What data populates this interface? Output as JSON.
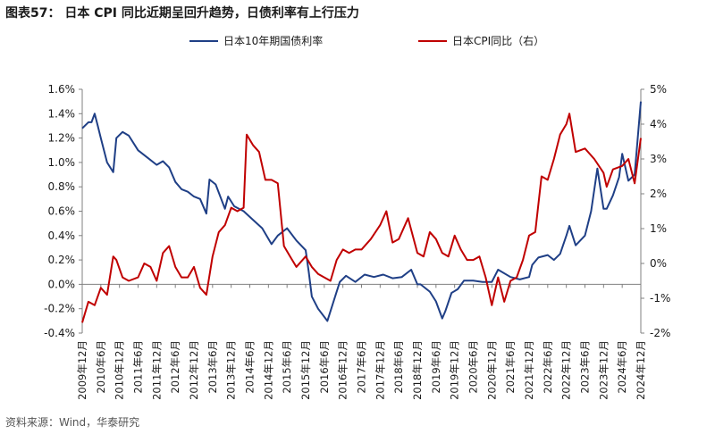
{
  "title": "图表57：  日本 CPI 同比近期呈回升趋势，日债利率有上行压力",
  "source": "资料来源：Wind，华泰研究",
  "colors": {
    "bond": "#1f3f86",
    "cpi": "#c00000",
    "axis": "#808080"
  },
  "chart_data": {
    "type": "line",
    "x_range": [
      "2009-12",
      "2024-12"
    ],
    "legend_placement": "top",
    "grid": false,
    "left_axis": {
      "ylim": [
        -0.4,
        1.6
      ],
      "ticks": [
        "-0.4%",
        "-0.2%",
        "0.0%",
        "0.2%",
        "0.4%",
        "0.6%",
        "0.8%",
        "1.0%",
        "1.2%",
        "1.4%",
        "1.6%"
      ],
      "tick_values": [
        -0.4,
        -0.2,
        0.0,
        0.2,
        0.4,
        0.6,
        0.8,
        1.0,
        1.2,
        1.4,
        1.6
      ]
    },
    "right_axis": {
      "ylim": [
        -2,
        5
      ],
      "ticks": [
        "-2%",
        "-1%",
        "0%",
        "1%",
        "2%",
        "3%",
        "4%",
        "5%"
      ],
      "tick_values": [
        -2,
        -1,
        0,
        1,
        2,
        3,
        4,
        5
      ]
    },
    "x_tick_labels": [
      "2009年12月",
      "2010年6月",
      "2010年12月",
      "2011年6月",
      "2011年12月",
      "2012年6月",
      "2012年12月",
      "2013年6月",
      "2013年12月",
      "2014年6月",
      "2014年12月",
      "2015年6月",
      "2015年12月",
      "2016年6月",
      "2016年12月",
      "2017年6月",
      "2017年12月",
      "2018年6月",
      "2018年12月",
      "2019年6月",
      "2019年12月",
      "2020年6月",
      "2020年12月",
      "2021年6月",
      "2021年12月",
      "2022年6月",
      "2022年12月",
      "2023年6月",
      "2023年12月",
      "2024年6月",
      "2024年12月"
    ],
    "series": [
      {
        "name": "日本10年期国债利率",
        "axis": "left",
        "x": [
          "2009-12",
          "2010-02",
          "2010-03",
          "2010-04",
          "2010-05",
          "2010-06",
          "2010-08",
          "2010-10",
          "2010-11",
          "2011-01",
          "2011-03",
          "2011-06",
          "2011-09",
          "2011-12",
          "2012-02",
          "2012-04",
          "2012-06",
          "2012-08",
          "2012-10",
          "2012-12",
          "2013-02",
          "2013-04",
          "2013-05",
          "2013-07",
          "2013-10",
          "2013-11",
          "2014-01",
          "2014-04",
          "2014-07",
          "2014-10",
          "2015-01",
          "2015-03",
          "2015-06",
          "2015-09",
          "2015-12",
          "2016-01",
          "2016-02",
          "2016-04",
          "2016-07",
          "2016-10",
          "2016-11",
          "2017-01",
          "2017-04",
          "2017-07",
          "2017-10",
          "2018-01",
          "2018-04",
          "2018-07",
          "2018-10",
          "2018-12",
          "2019-01",
          "2019-04",
          "2019-06",
          "2019-08",
          "2019-09",
          "2019-11",
          "2020-01",
          "2020-03",
          "2020-06",
          "2020-09",
          "2020-12",
          "2021-02",
          "2021-06",
          "2021-09",
          "2021-12",
          "2022-01",
          "2022-03",
          "2022-06",
          "2022-08",
          "2022-10",
          "2022-12",
          "2023-01",
          "2023-03",
          "2023-06",
          "2023-08",
          "2023-10",
          "2023-12",
          "2024-01",
          "2024-03",
          "2024-05",
          "2024-06",
          "2024-08",
          "2024-10",
          "2024-12"
        ],
        "values": [
          1.28,
          1.33,
          1.33,
          1.4,
          1.3,
          1.2,
          1.0,
          0.92,
          1.2,
          1.25,
          1.22,
          1.1,
          1.04,
          0.98,
          1.01,
          0.96,
          0.84,
          0.78,
          0.76,
          0.72,
          0.7,
          0.58,
          0.86,
          0.82,
          0.62,
          0.72,
          0.64,
          0.6,
          0.53,
          0.46,
          0.33,
          0.4,
          0.46,
          0.36,
          0.28,
          0.1,
          -0.1,
          -0.2,
          -0.3,
          -0.06,
          0.02,
          0.07,
          0.02,
          0.08,
          0.06,
          0.08,
          0.05,
          0.06,
          0.12,
          0.0,
          0.0,
          -0.06,
          -0.14,
          -0.28,
          -0.22,
          -0.07,
          -0.04,
          0.03,
          0.03,
          0.02,
          0.02,
          0.12,
          0.06,
          0.04,
          0.06,
          0.16,
          0.22,
          0.24,
          0.2,
          0.25,
          0.4,
          0.48,
          0.32,
          0.4,
          0.6,
          0.95,
          0.62,
          0.62,
          0.73,
          0.88,
          1.07,
          0.85,
          0.9,
          1.5
        ]
      },
      {
        "name": "日本CPI同比（右）",
        "axis": "right",
        "x": [
          "2009-12",
          "2010-02",
          "2010-04",
          "2010-06",
          "2010-08",
          "2010-10",
          "2010-11",
          "2011-01",
          "2011-03",
          "2011-06",
          "2011-08",
          "2011-10",
          "2011-12",
          "2012-02",
          "2012-04",
          "2012-06",
          "2012-08",
          "2012-10",
          "2012-12",
          "2013-02",
          "2013-04",
          "2013-06",
          "2013-08",
          "2013-10",
          "2013-12",
          "2014-02",
          "2014-04",
          "2014-05",
          "2014-07",
          "2014-09",
          "2014-11",
          "2015-01",
          "2015-03",
          "2015-05",
          "2015-07",
          "2015-09",
          "2015-12",
          "2016-02",
          "2016-04",
          "2016-06",
          "2016-08",
          "2016-10",
          "2016-12",
          "2017-02",
          "2017-04",
          "2017-06",
          "2017-09",
          "2017-12",
          "2018-02",
          "2018-04",
          "2018-06",
          "2018-09",
          "2018-12",
          "2019-02",
          "2019-04",
          "2019-06",
          "2019-08",
          "2019-10",
          "2019-12",
          "2020-02",
          "2020-04",
          "2020-06",
          "2020-08",
          "2020-10",
          "2020-12",
          "2021-02",
          "2021-04",
          "2021-06",
          "2021-08",
          "2021-10",
          "2021-12",
          "2022-02",
          "2022-04",
          "2022-06",
          "2022-08",
          "2022-10",
          "2022-12",
          "2023-01",
          "2023-03",
          "2023-06",
          "2023-09",
          "2023-12",
          "2024-01",
          "2024-03",
          "2024-06",
          "2024-08",
          "2024-10",
          "2024-12"
        ],
        "values": [
          -1.7,
          -1.1,
          -1.2,
          -0.7,
          -0.9,
          0.2,
          0.1,
          -0.4,
          -0.5,
          -0.4,
          0.0,
          -0.1,
          -0.5,
          0.3,
          0.5,
          -0.1,
          -0.4,
          -0.4,
          -0.1,
          -0.7,
          -0.9,
          0.2,
          0.9,
          1.1,
          1.6,
          1.5,
          1.6,
          3.7,
          3.4,
          3.2,
          2.4,
          2.4,
          2.3,
          0.5,
          0.2,
          -0.1,
          0.2,
          -0.1,
          -0.3,
          -0.4,
          -0.5,
          0.1,
          0.4,
          0.3,
          0.4,
          0.4,
          0.7,
          1.1,
          1.5,
          0.6,
          0.7,
          1.3,
          0.3,
          0.2,
          0.9,
          0.7,
          0.3,
          0.2,
          0.8,
          0.4,
          0.1,
          0.1,
          0.2,
          -0.4,
          -1.2,
          -0.4,
          -1.1,
          -0.5,
          -0.4,
          0.1,
          0.8,
          0.9,
          2.5,
          2.4,
          3.0,
          3.7,
          4.0,
          4.3,
          3.2,
          3.3,
          3.0,
          2.6,
          2.2,
          2.7,
          2.8,
          3.0,
          2.3,
          3.6
        ]
      }
    ]
  }
}
